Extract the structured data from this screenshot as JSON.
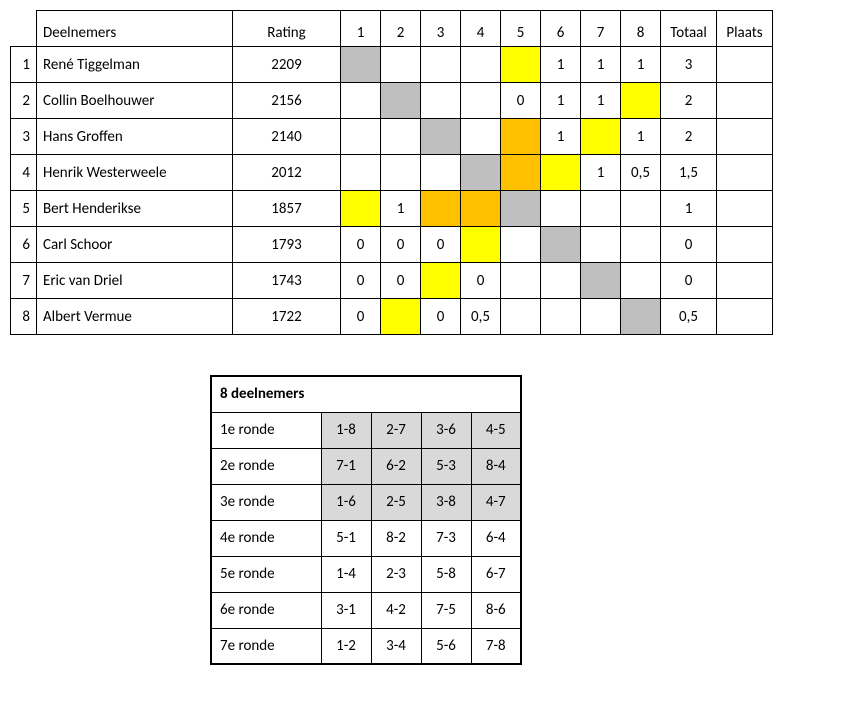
{
  "colors": {
    "grey": "#bfbfbf",
    "yellow": "#ffff00",
    "orange": "#ffc000",
    "sched_grey": "#d9d9d9"
  },
  "mainHeaders": {
    "deelnemers": "Deelnemers",
    "rating": "Rating",
    "rounds": [
      "1",
      "2",
      "3",
      "4",
      "5",
      "6",
      "7",
      "8"
    ],
    "totaal": "Totaal",
    "plaats": "Plaats"
  },
  "players": [
    {
      "num": "1",
      "name": "René Tiggelman",
      "rating": "2209",
      "cells": [
        {
          "v": "",
          "c": "grey"
        },
        {
          "v": ""
        },
        {
          "v": ""
        },
        {
          "v": ""
        },
        {
          "v": "",
          "c": "yellow"
        },
        {
          "v": "1"
        },
        {
          "v": "1"
        },
        {
          "v": "1"
        }
      ],
      "totaal": "3",
      "plaats": ""
    },
    {
      "num": "2",
      "name": "Collin Boelhouwer",
      "rating": "2156",
      "cells": [
        {
          "v": ""
        },
        {
          "v": "",
          "c": "grey"
        },
        {
          "v": ""
        },
        {
          "v": ""
        },
        {
          "v": "0"
        },
        {
          "v": "1"
        },
        {
          "v": "1"
        },
        {
          "v": "",
          "c": "yellow"
        }
      ],
      "totaal": "2",
      "plaats": ""
    },
    {
      "num": "3",
      "name": "Hans Groffen",
      "rating": "2140",
      "cells": [
        {
          "v": ""
        },
        {
          "v": ""
        },
        {
          "v": "",
          "c": "grey"
        },
        {
          "v": ""
        },
        {
          "v": "",
          "c": "orange"
        },
        {
          "v": "1"
        },
        {
          "v": "",
          "c": "yellow"
        },
        {
          "v": "1"
        }
      ],
      "totaal": "2",
      "plaats": ""
    },
    {
      "num": "4",
      "name": "Henrik Westerweele",
      "rating": "2012",
      "cells": [
        {
          "v": ""
        },
        {
          "v": ""
        },
        {
          "v": ""
        },
        {
          "v": "",
          "c": "grey"
        },
        {
          "v": "",
          "c": "orange"
        },
        {
          "v": "",
          "c": "yellow"
        },
        {
          "v": "1"
        },
        {
          "v": "0,5"
        }
      ],
      "totaal": "1,5",
      "plaats": ""
    },
    {
      "num": "5",
      "name": "Bert Henderikse",
      "rating": "1857",
      "cells": [
        {
          "v": "",
          "c": "yellow"
        },
        {
          "v": "1"
        },
        {
          "v": "",
          "c": "orange"
        },
        {
          "v": "",
          "c": "orange"
        },
        {
          "v": "",
          "c": "grey"
        },
        {
          "v": ""
        },
        {
          "v": ""
        },
        {
          "v": ""
        }
      ],
      "totaal": "1",
      "plaats": ""
    },
    {
      "num": "6",
      "name": "Carl Schoor",
      "rating": "1793",
      "cells": [
        {
          "v": "0"
        },
        {
          "v": "0"
        },
        {
          "v": "0"
        },
        {
          "v": "",
          "c": "yellow"
        },
        {
          "v": ""
        },
        {
          "v": "",
          "c": "grey"
        },
        {
          "v": ""
        },
        {
          "v": ""
        }
      ],
      "totaal": "0",
      "plaats": ""
    },
    {
      "num": "7",
      "name": "Eric van Driel",
      "rating": "1743",
      "cells": [
        {
          "v": "0"
        },
        {
          "v": "0"
        },
        {
          "v": "",
          "c": "yellow"
        },
        {
          "v": "0"
        },
        {
          "v": ""
        },
        {
          "v": ""
        },
        {
          "v": "",
          "c": "grey"
        },
        {
          "v": ""
        }
      ],
      "totaal": "0",
      "plaats": ""
    },
    {
      "num": "8",
      "name": "Albert Vermue",
      "rating": "1722",
      "cells": [
        {
          "v": "0"
        },
        {
          "v": "",
          "c": "yellow"
        },
        {
          "v": "0"
        },
        {
          "v": "0,5"
        },
        {
          "v": ""
        },
        {
          "v": ""
        },
        {
          "v": ""
        },
        {
          "v": "",
          "c": "grey"
        }
      ],
      "totaal": "0,5",
      "plaats": ""
    }
  ],
  "schedule": {
    "title": "8 deelnemers",
    "rounds": [
      {
        "label": "1e ronde",
        "pairs": [
          "1-8",
          "2-7",
          "3-6",
          "4-5"
        ],
        "shade": true
      },
      {
        "label": "2e ronde",
        "pairs": [
          "7-1",
          "6-2",
          "5-3",
          "8-4"
        ],
        "shade": true
      },
      {
        "label": "3e ronde",
        "pairs": [
          "1-6",
          "2-5",
          "3-8",
          "4-7"
        ],
        "shade": true
      },
      {
        "label": "4e ronde",
        "pairs": [
          "5-1",
          "8-2",
          "7-3",
          "6-4"
        ],
        "shade": false
      },
      {
        "label": "5e ronde",
        "pairs": [
          "1-4",
          "2-3",
          "5-8",
          "6-7"
        ],
        "shade": false
      },
      {
        "label": "6e ronde",
        "pairs": [
          "3-1",
          "4-2",
          "7-5",
          "8-6"
        ],
        "shade": false
      },
      {
        "label": "7e ronde",
        "pairs": [
          "1-2",
          "3-4",
          "5-6",
          "7-8"
        ],
        "shade": false
      }
    ]
  }
}
